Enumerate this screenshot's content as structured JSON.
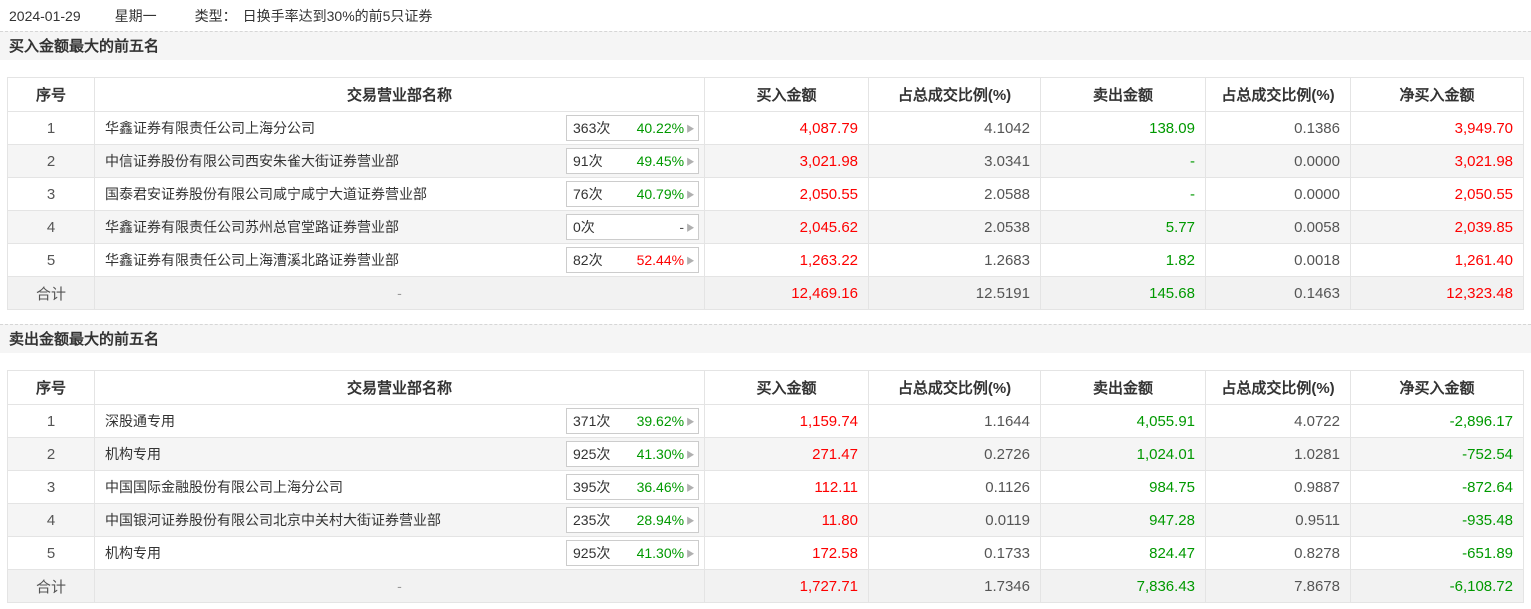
{
  "page": {
    "date": "2024-01-29",
    "weekday": "星期一",
    "type_label": "类型：",
    "type_value": "日换手率达到30%的前5只证券"
  },
  "colors": {
    "buy_red": "#fe0000",
    "sell_green": "#009900",
    "ratio_gray": "#555555",
    "stripe_bg": "#f5f5f5",
    "badge_border": "#cccccc"
  },
  "columns": [
    "序号",
    "交易营业部名称",
    "买入金额",
    "占总成交比例(%)",
    "卖出金额",
    "占总成交比例(%)",
    "净买入金额"
  ],
  "buy_section": {
    "title": "买入金额最大的前五名",
    "rows": [
      {
        "rank": "1",
        "name": "华鑫证券有限责任公司上海分公司",
        "count": "363次",
        "pct": "40.22%",
        "arrow": "▶",
        "buy": "4,087.79",
        "buy_ratio": "4.1042",
        "sell": "138.09",
        "sell_ratio": "0.1386",
        "net": "3,949.70"
      },
      {
        "rank": "2",
        "name": "中信证券股份有限公司西安朱雀大街证券营业部",
        "count": "91次",
        "pct": "49.45%",
        "arrow": "▶",
        "buy": "3,021.98",
        "buy_ratio": "3.0341",
        "sell": "-",
        "sell_ratio": "0.0000",
        "net": "3,021.98"
      },
      {
        "rank": "3",
        "name": "国泰君安证券股份有限公司咸宁咸宁大道证券营业部",
        "count": "76次",
        "pct": "40.79%",
        "arrow": "▶",
        "buy": "2,050.55",
        "buy_ratio": "2.0588",
        "sell": "-",
        "sell_ratio": "0.0000",
        "net": "2,050.55"
      },
      {
        "rank": "4",
        "name": "华鑫证券有限责任公司苏州总官堂路证券营业部",
        "count": "0次",
        "pct": "-",
        "arrow": "▶",
        "buy": "2,045.62",
        "buy_ratio": "2.0538",
        "sell": "5.77",
        "sell_ratio": "0.0058",
        "net": "2,039.85"
      },
      {
        "rank": "5",
        "name": "华鑫证券有限责任公司上海漕溪北路证券营业部",
        "count": "82次",
        "pct": "52.44%",
        "arrow": "▶",
        "buy": "1,263.22",
        "buy_ratio": "1.2683",
        "sell": "1.82",
        "sell_ratio": "0.0018",
        "net": "1,261.40"
      }
    ],
    "total": {
      "rank": "合计",
      "name": "-",
      "buy": "12,469.16",
      "buy_ratio": "12.5191",
      "sell": "145.68",
      "sell_ratio": "0.1463",
      "net": "12,323.48"
    }
  },
  "sell_section": {
    "title": "卖出金额最大的前五名",
    "rows": [
      {
        "rank": "1",
        "name": "深股通专用",
        "count": "371次",
        "pct": "39.62%",
        "arrow": "▶",
        "buy": "1,159.74",
        "buy_ratio": "1.1644",
        "sell": "4,055.91",
        "sell_ratio": "4.0722",
        "net": "-2,896.17"
      },
      {
        "rank": "2",
        "name": "机构专用",
        "count": "925次",
        "pct": "41.30%",
        "arrow": "▶",
        "buy": "271.47",
        "buy_ratio": "0.2726",
        "sell": "1,024.01",
        "sell_ratio": "1.0281",
        "net": "-752.54"
      },
      {
        "rank": "3",
        "name": "中国国际金融股份有限公司上海分公司",
        "count": "395次",
        "pct": "36.46%",
        "arrow": "▶",
        "buy": "112.11",
        "buy_ratio": "0.1126",
        "sell": "984.75",
        "sell_ratio": "0.9887",
        "net": "-872.64"
      },
      {
        "rank": "4",
        "name": "中国银河证券股份有限公司北京中关村大街证券营业部",
        "count": "235次",
        "pct": "28.94%",
        "arrow": "▶",
        "buy": "11.80",
        "buy_ratio": "0.0119",
        "sell": "947.28",
        "sell_ratio": "0.9511",
        "net": "-935.48"
      },
      {
        "rank": "5",
        "name": "机构专用",
        "count": "925次",
        "pct": "41.30%",
        "arrow": "▶",
        "buy": "172.58",
        "buy_ratio": "0.1733",
        "sell": "824.47",
        "sell_ratio": "0.8278",
        "net": "-651.89"
      }
    ],
    "total": {
      "rank": "合计",
      "name": "-",
      "buy": "1,727.71",
      "buy_ratio": "1.7346",
      "sell": "7,836.43",
      "sell_ratio": "7.8678",
      "net": "-6,108.72"
    }
  }
}
